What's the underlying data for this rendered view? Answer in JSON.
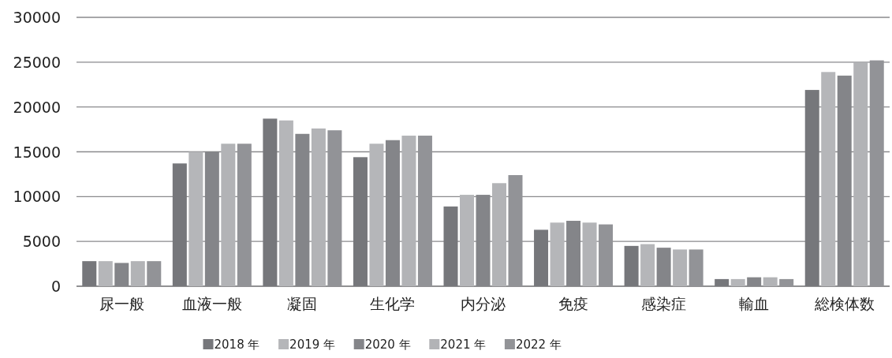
{
  "chart_data": {
    "type": "bar",
    "categories": [
      "尿一般",
      "血液一般",
      "凝固",
      "生化学",
      "内分泌",
      "免疫",
      "感染症",
      "輸血",
      "総検体数"
    ],
    "series": [
      {
        "name": "2018 年",
        "color": "#76777b",
        "values": [
          2800,
          13700,
          18700,
          14400,
          8900,
          6300,
          4500,
          800,
          21900
        ]
      },
      {
        "name": "2019 年",
        "color": "#b5b6b9",
        "values": [
          2800,
          15000,
          18500,
          15900,
          10200,
          7100,
          4700,
          800,
          23900
        ]
      },
      {
        "name": "2020 年",
        "color": "#848589",
        "values": [
          2600,
          15000,
          17000,
          16300,
          10200,
          7300,
          4300,
          1000,
          23500
        ]
      },
      {
        "name": "2021 年",
        "color": "#b2b3b6",
        "values": [
          2800,
          15900,
          17600,
          16800,
          11500,
          7100,
          4100,
          1000,
          25000
        ]
      },
      {
        "name": "2022 年",
        "color": "#929397",
        "values": [
          2800,
          15900,
          17400,
          16800,
          12400,
          6900,
          4100,
          800,
          25200
        ]
      }
    ],
    "ylim": [
      0,
      30000
    ],
    "yticks": [
      0,
      5000,
      10000,
      15000,
      20000,
      25000,
      30000
    ],
    "grid": "y",
    "legend": "bottom"
  }
}
